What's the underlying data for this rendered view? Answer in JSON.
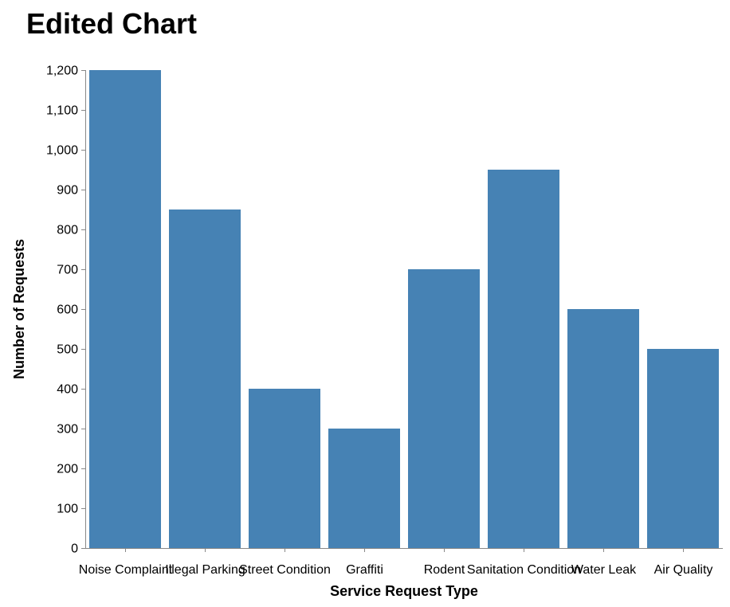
{
  "chart_data": {
    "type": "bar",
    "title": "Edited Chart",
    "xlabel": "Service Request Type",
    "ylabel": "Number of Requests",
    "categories": [
      "Noise Complaint",
      "Illegal Parking",
      "Street Condition",
      "Graffiti",
      "Rodent",
      "Sanitation Condition",
      "Water Leak",
      "Air Quality"
    ],
    "values": [
      1200,
      850,
      400,
      300,
      700,
      950,
      600,
      500
    ],
    "ylim": [
      0,
      1200
    ],
    "yticks": [
      0,
      100,
      200,
      300,
      400,
      500,
      600,
      700,
      800,
      900,
      1000,
      1100,
      1200
    ],
    "ytick_labels": [
      "0",
      "100",
      "200",
      "300",
      "400",
      "500",
      "600",
      "700",
      "800",
      "900",
      "1,000",
      "1,100",
      "1,200"
    ],
    "grid": false,
    "legend": "none",
    "bar_color": "#4682b4"
  }
}
